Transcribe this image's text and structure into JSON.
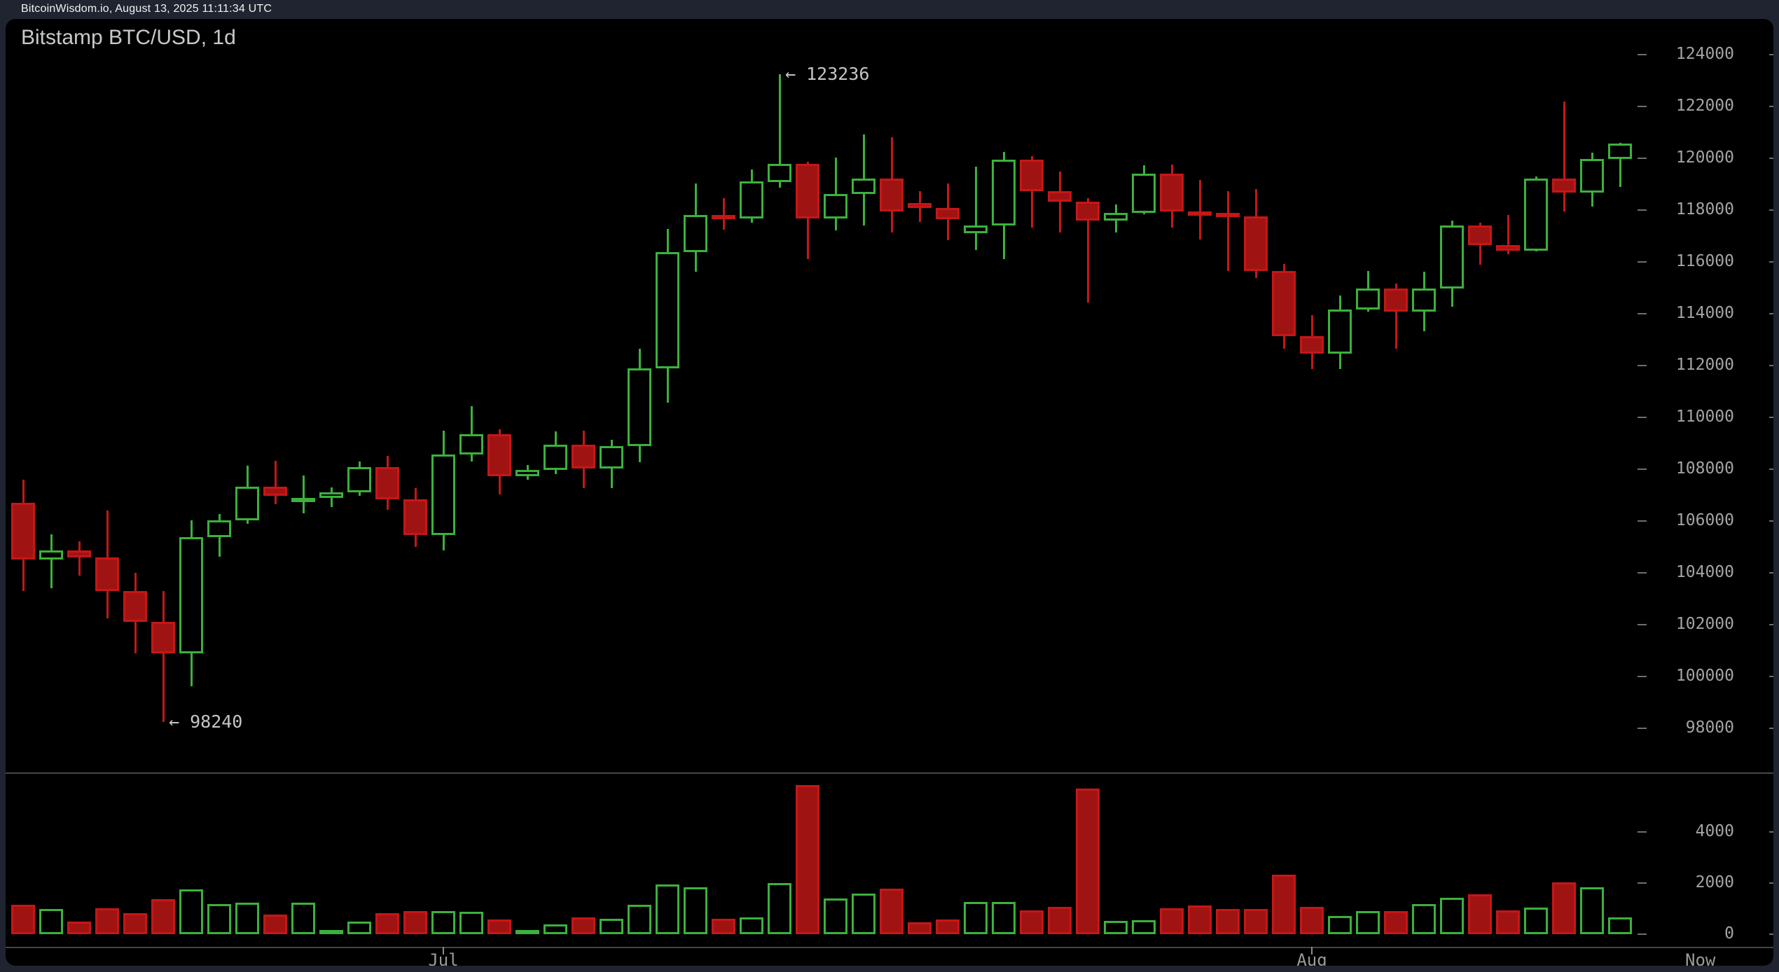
{
  "status_bar": {
    "text": "BitcoinWisdom.io, August 13, 2025 11:11:34 UTC"
  },
  "chart": {
    "title": "Bitstamp BTC/USD, 1d"
  },
  "colors": {
    "up": "#3cb13c",
    "down_fill": "#a01313",
    "down_border": "#c51717",
    "background": "#000000",
    "page_background": "#1f2430",
    "axis_text": "#a4a4a4"
  },
  "chart_data": {
    "type": "candlestick",
    "title": "Bitstamp BTC/USD, 1d",
    "interval": "1d",
    "price_axis": {
      "tick_labels": [
        "124000",
        "122000",
        "120000",
        "118000",
        "116000",
        "114000",
        "112000",
        "110000",
        "108000",
        "106000",
        "104000",
        "102000",
        "100000",
        "98000"
      ],
      "range_top": 124000,
      "range_bottom": 98000,
      "grid": "off"
    },
    "volume_axis": {
      "tick_labels": [
        "4000",
        "2000",
        "0"
      ],
      "range_top": 4000,
      "range_bottom": 0
    },
    "x_axis": {
      "month_labels": [
        {
          "label": "Jul",
          "candle_index": 15
        },
        {
          "label": "Aug",
          "candle_index": 46
        }
      ],
      "now_label": "Now"
    },
    "annotations": [
      {
        "text": "← 123236",
        "type": "high",
        "value": 123236,
        "candle_index": 27
      },
      {
        "text": "← 98240",
        "type": "low",
        "value": 98240,
        "candle_index": 5
      }
    ],
    "candles": [
      [
        106700,
        107600,
        103300,
        104500,
        1160
      ],
      [
        104500,
        105500,
        103400,
        104860,
        990
      ],
      [
        104860,
        105210,
        103900,
        104590,
        505
      ],
      [
        104590,
        106400,
        102240,
        103310,
        1010
      ],
      [
        103310,
        104000,
        100900,
        102100,
        825
      ],
      [
        102100,
        103300,
        98240,
        100900,
        1375
      ],
      [
        100900,
        106030,
        99620,
        105380,
        1760
      ],
      [
        105380,
        106270,
        104620,
        106030,
        1165
      ],
      [
        106030,
        108140,
        105890,
        107330,
        1220
      ],
      [
        107330,
        108330,
        106650,
        106980,
        780
      ],
      [
        106760,
        107750,
        106300,
        106900,
        1230
      ],
      [
        106900,
        107310,
        106530,
        107120,
        155
      ],
      [
        107120,
        108290,
        106980,
        108070,
        500
      ],
      [
        108070,
        108520,
        106440,
        106850,
        820
      ],
      [
        106850,
        107260,
        105000,
        105450,
        915
      ],
      [
        105450,
        109500,
        104860,
        108560,
        915
      ],
      [
        108560,
        110420,
        108290,
        109340,
        890
      ],
      [
        109340,
        109530,
        107030,
        107740,
        570
      ],
      [
        107740,
        108160,
        107600,
        107960,
        155
      ],
      [
        107960,
        109450,
        107820,
        108940,
        385
      ],
      [
        108940,
        109480,
        107260,
        108020,
        660
      ],
      [
        108020,
        109130,
        107260,
        108890,
        590
      ],
      [
        108890,
        112650,
        108270,
        111900,
        1140
      ],
      [
        111900,
        117270,
        110570,
        116380,
        1940
      ],
      [
        116380,
        119030,
        115620,
        117810,
        1830
      ],
      [
        117810,
        118460,
        117240,
        117680,
        610
      ],
      [
        117680,
        119570,
        117510,
        119100,
        660
      ],
      [
        119080,
        123236,
        118860,
        119780,
        1990
      ],
      [
        119780,
        119870,
        116110,
        117680,
        5840
      ],
      [
        117680,
        120030,
        117210,
        118620,
        1390
      ],
      [
        118620,
        120920,
        117400,
        119220,
        1600
      ],
      [
        119220,
        120810,
        117130,
        117950,
        1790
      ],
      [
        118270,
        118730,
        117540,
        118080,
        460
      ],
      [
        118080,
        119030,
        116830,
        117650,
        570
      ],
      [
        117110,
        119680,
        116460,
        117400,
        1270
      ],
      [
        117400,
        120240,
        116110,
        119950,
        1270
      ],
      [
        119950,
        120080,
        117320,
        118730,
        945
      ],
      [
        118730,
        119490,
        117130,
        118320,
        1070
      ],
      [
        118320,
        118460,
        114430,
        117590,
        5690
      ],
      [
        117590,
        118220,
        117130,
        117890,
        520
      ],
      [
        117890,
        119730,
        117840,
        119410,
        550
      ],
      [
        119410,
        119760,
        117320,
        117950,
        1010
      ],
      [
        117950,
        119160,
        116860,
        117890,
        1130
      ],
      [
        117890,
        118730,
        115650,
        117760,
        990
      ],
      [
        117760,
        118810,
        115380,
        115650,
        990
      ],
      [
        115650,
        115920,
        112650,
        113130,
        2340
      ],
      [
        113130,
        113940,
        111860,
        112460,
        1070
      ],
      [
        112460,
        114700,
        111860,
        114160,
        715
      ],
      [
        114160,
        115650,
        114080,
        114970,
        900
      ],
      [
        114970,
        115160,
        112650,
        114080,
        900
      ],
      [
        114080,
        115620,
        113320,
        114970,
        1170
      ],
      [
        114970,
        117590,
        114270,
        117400,
        1420
      ],
      [
        117400,
        117510,
        115890,
        116650,
        1560
      ],
      [
        116650,
        117810,
        116300,
        116430,
        945
      ],
      [
        116430,
        119300,
        116400,
        119220,
        1050
      ],
      [
        119220,
        122190,
        117950,
        118670,
        2040
      ],
      [
        118670,
        120220,
        118140,
        119970,
        1830
      ],
      [
        119970,
        120600,
        118890,
        120570,
        670
      ]
    ],
    "candle_fields": [
      "open",
      "high",
      "low",
      "close",
      "volume"
    ]
  }
}
